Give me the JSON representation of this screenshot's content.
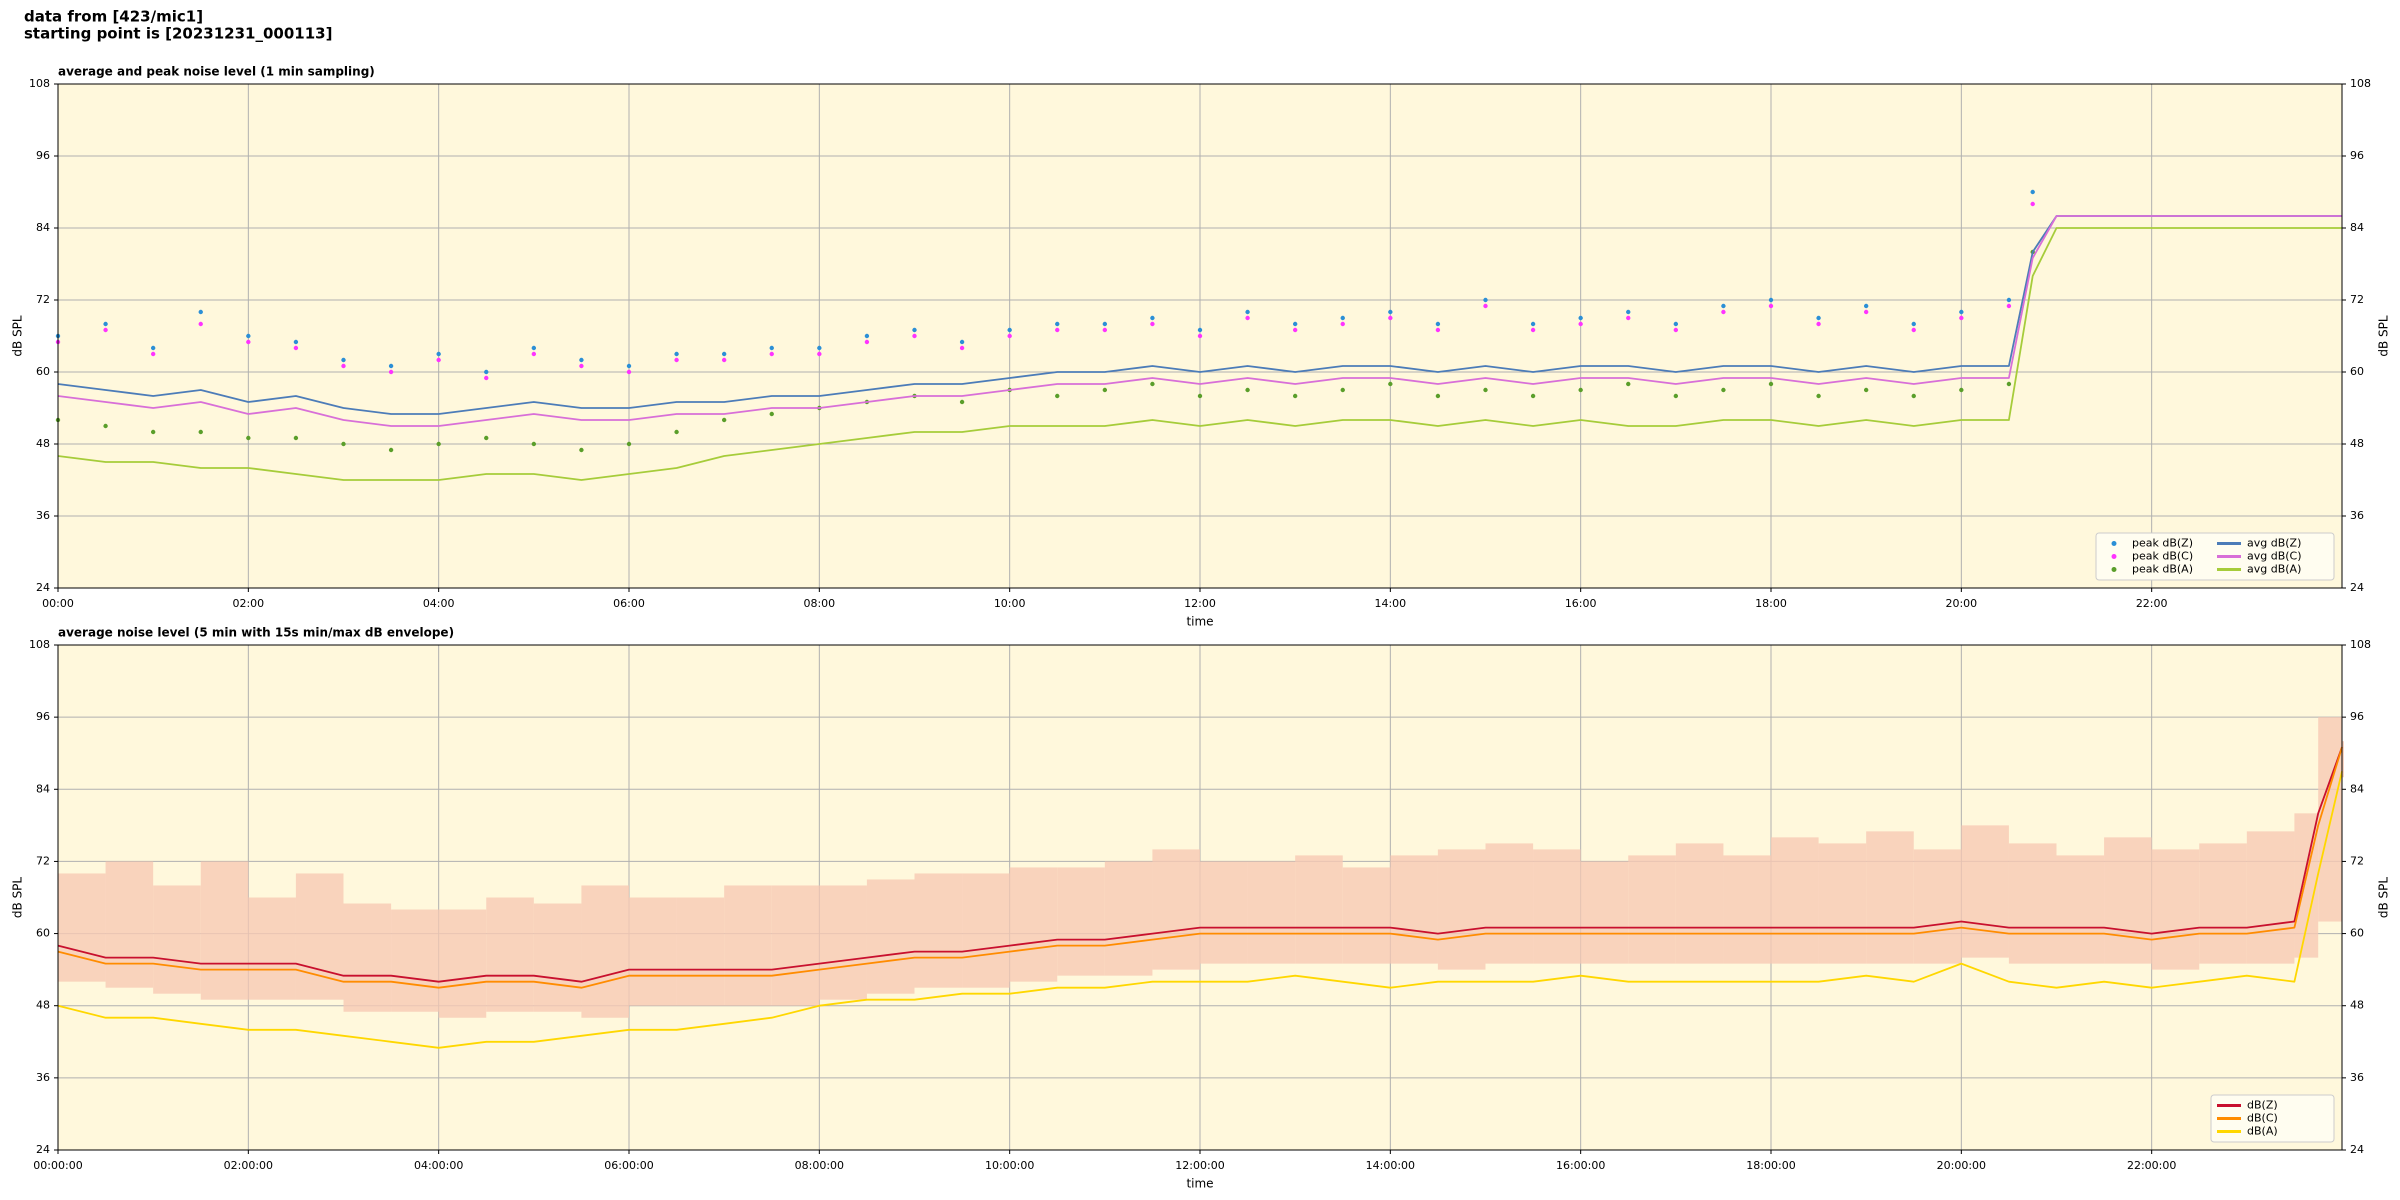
{
  "header": [
    "data from [423/mic1]",
    "starting point is [20231231_000113]"
  ],
  "chart_data": [
    {
      "type": "line",
      "title": "average and peak noise level (1 min sampling)",
      "xlabel": "time",
      "ylabel": "dB SPL",
      "background": "#fff8dc",
      "grid": true,
      "legend": "lower right",
      "legend_columns": 2,
      "xlim": [
        0,
        24
      ],
      "ylim": [
        24,
        108
      ],
      "xticks": [
        {
          "value": 0,
          "label": "00:00"
        },
        {
          "value": 2,
          "label": "02:00"
        },
        {
          "value": 4,
          "label": "04:00"
        },
        {
          "value": 6,
          "label": "06:00"
        },
        {
          "value": 8,
          "label": "08:00"
        },
        {
          "value": 10,
          "label": "10:00"
        },
        {
          "value": 12,
          "label": "12:00"
        },
        {
          "value": 14,
          "label": "14:00"
        },
        {
          "value": 16,
          "label": "16:00"
        },
        {
          "value": 18,
          "label": "18:00"
        },
        {
          "value": 20,
          "label": "20:00"
        },
        {
          "value": 22,
          "label": "22:00"
        }
      ],
      "yticks": [
        24,
        36,
        48,
        60,
        72,
        84,
        96,
        108
      ],
      "x": [
        0,
        0.5,
        1,
        1.5,
        2,
        2.5,
        3,
        3.5,
        4,
        4.5,
        5,
        5.5,
        6,
        6.5,
        7,
        7.5,
        8,
        8.5,
        9,
        9.5,
        10,
        10.5,
        11,
        11.5,
        12,
        12.5,
        13,
        13.5,
        14,
        14.5,
        15,
        15.5,
        16,
        16.5,
        17,
        17.5,
        18,
        18.5,
        19,
        19.5,
        20,
        20.5,
        20.75,
        21,
        22,
        23,
        24
      ],
      "series": [
        {
          "name": "peak dB(Z)",
          "mark": "dot",
          "color": "#2b8fd6",
          "values": [
            66,
            68,
            64,
            70,
            66,
            65,
            62,
            61,
            63,
            60,
            64,
            62,
            61,
            63,
            63,
            64,
            64,
            66,
            67,
            65,
            67,
            68,
            68,
            69,
            67,
            70,
            68,
            69,
            70,
            68,
            72,
            68,
            69,
            70,
            68,
            71,
            72,
            69,
            71,
            68,
            70,
            72,
            90,
            null,
            null,
            null,
            null
          ]
        },
        {
          "name": "peak dB(C)",
          "mark": "dot",
          "color": "#ff33ff",
          "values": [
            65,
            67,
            63,
            68,
            65,
            64,
            61,
            60,
            62,
            59,
            63,
            61,
            60,
            62,
            62,
            63,
            63,
            65,
            66,
            64,
            66,
            67,
            67,
            68,
            66,
            69,
            67,
            68,
            69,
            67,
            71,
            67,
            68,
            69,
            67,
            70,
            71,
            68,
            70,
            67,
            69,
            71,
            88,
            null,
            null,
            null,
            null
          ]
        },
        {
          "name": "peak dB(A)",
          "mark": "dot",
          "color": "#5a9e2a",
          "values": [
            52,
            51,
            50,
            50,
            49,
            49,
            48,
            47,
            48,
            49,
            48,
            47,
            48,
            50,
            52,
            53,
            54,
            55,
            56,
            55,
            57,
            56,
            57,
            58,
            56,
            57,
            56,
            57,
            58,
            56,
            57,
            56,
            57,
            58,
            56,
            57,
            58,
            56,
            57,
            56,
            57,
            58,
            80,
            null,
            null,
            null,
            null
          ]
        },
        {
          "name": "avg dB(Z)",
          "mark": "line",
          "color": "#4c7cb8",
          "values": [
            58,
            57,
            56,
            57,
            55,
            56,
            54,
            53,
            53,
            54,
            55,
            54,
            54,
            55,
            55,
            56,
            56,
            57,
            58,
            58,
            59,
            60,
            60,
            61,
            60,
            61,
            60,
            61,
            61,
            60,
            61,
            60,
            61,
            61,
            60,
            61,
            61,
            60,
            61,
            60,
            61,
            61,
            80,
            86,
            86,
            86,
            86
          ]
        },
        {
          "name": "avg dB(C)",
          "mark": "line",
          "color": "#d86fd8",
          "values": [
            56,
            55,
            54,
            55,
            53,
            54,
            52,
            51,
            51,
            52,
            53,
            52,
            52,
            53,
            53,
            54,
            54,
            55,
            56,
            56,
            57,
            58,
            58,
            59,
            58,
            59,
            58,
            59,
            59,
            58,
            59,
            58,
            59,
            59,
            58,
            59,
            59,
            58,
            59,
            58,
            59,
            59,
            79,
            86,
            86,
            86,
            86
          ]
        },
        {
          "name": "avg dB(A)",
          "mark": "line",
          "color": "#a6cc3a",
          "values": [
            46,
            45,
            45,
            44,
            44,
            43,
            42,
            42,
            42,
            43,
            43,
            42,
            43,
            44,
            46,
            47,
            48,
            49,
            50,
            50,
            51,
            51,
            51,
            52,
            51,
            52,
            51,
            52,
            52,
            51,
            52,
            51,
            52,
            51,
            51,
            52,
            52,
            51,
            52,
            51,
            52,
            52,
            76,
            84,
            84,
            84,
            84
          ]
        }
      ]
    },
    {
      "type": "line",
      "title": "average noise level (5 min with 15s min/max dB envelope)",
      "xlabel": "time",
      "ylabel": "dB SPL",
      "background": "#fff8dc",
      "grid": true,
      "legend": "lower right",
      "legend_columns": 1,
      "xlim": [
        0,
        24
      ],
      "ylim": [
        24,
        108
      ],
      "xticks": [
        {
          "value": 0,
          "label": "00:00:00"
        },
        {
          "value": 2,
          "label": "02:00:00"
        },
        {
          "value": 4,
          "label": "04:00:00"
        },
        {
          "value": 6,
          "label": "06:00:00"
        },
        {
          "value": 8,
          "label": "08:00:00"
        },
        {
          "value": 10,
          "label": "10:00:00"
        },
        {
          "value": 12,
          "label": "12:00:00"
        },
        {
          "value": 14,
          "label": "14:00:00"
        },
        {
          "value": 16,
          "label": "16:00:00"
        },
        {
          "value": 18,
          "label": "18:00:00"
        },
        {
          "value": 20,
          "label": "20:00:00"
        },
        {
          "value": 22,
          "label": "22:00:00"
        }
      ],
      "yticks": [
        24,
        36,
        48,
        60,
        72,
        84,
        96,
        108
      ],
      "x": [
        0,
        0.5,
        1,
        1.5,
        2,
        2.5,
        3,
        3.5,
        4,
        4.5,
        5,
        5.5,
        6,
        6.5,
        7,
        7.5,
        8,
        8.5,
        9,
        9.5,
        10,
        10.5,
        11,
        11.5,
        12,
        12.5,
        13,
        13.5,
        14,
        14.5,
        15,
        15.5,
        16,
        16.5,
        17,
        17.5,
        18,
        18.5,
        19,
        19.5,
        20,
        20.5,
        21,
        21.5,
        22,
        22.5,
        23,
        23.5,
        23.75,
        24
      ],
      "envelope": {
        "color": "#f7c9b4",
        "low": [
          52,
          51,
          50,
          49,
          49,
          49,
          47,
          47,
          46,
          47,
          47,
          46,
          48,
          48,
          48,
          48,
          49,
          50,
          51,
          51,
          52,
          53,
          53,
          54,
          55,
          55,
          55,
          55,
          55,
          54,
          55,
          55,
          55,
          55,
          55,
          55,
          55,
          55,
          55,
          55,
          56,
          55,
          55,
          55,
          54,
          55,
          55,
          56,
          62,
          86
        ],
        "high": [
          70,
          72,
          68,
          72,
          66,
          70,
          65,
          64,
          64,
          66,
          65,
          68,
          66,
          66,
          68,
          68,
          68,
          69,
          70,
          70,
          71,
          71,
          72,
          74,
          72,
          72,
          73,
          71,
          73,
          74,
          75,
          74,
          72,
          73,
          75,
          73,
          76,
          75,
          77,
          74,
          78,
          75,
          73,
          76,
          74,
          75,
          77,
          80,
          96,
          92
        ]
      },
      "series": [
        {
          "name": "dB(Z)",
          "mark": "line",
          "color": "#c8102e",
          "values": [
            58,
            56,
            56,
            55,
            55,
            55,
            53,
            53,
            52,
            53,
            53,
            52,
            54,
            54,
            54,
            54,
            55,
            56,
            57,
            57,
            58,
            59,
            59,
            60,
            61,
            61,
            61,
            61,
            61,
            60,
            61,
            61,
            61,
            61,
            61,
            61,
            61,
            61,
            61,
            61,
            62,
            61,
            61,
            61,
            60,
            61,
            61,
            62,
            80,
            91
          ]
        },
        {
          "name": "dB(C)",
          "mark": "line",
          "color": "#ff8c00",
          "values": [
            57,
            55,
            55,
            54,
            54,
            54,
            52,
            52,
            51,
            52,
            52,
            51,
            53,
            53,
            53,
            53,
            54,
            55,
            56,
            56,
            57,
            58,
            58,
            59,
            60,
            60,
            60,
            60,
            60,
            59,
            60,
            60,
            60,
            60,
            60,
            60,
            60,
            60,
            60,
            60,
            61,
            60,
            60,
            60,
            59,
            60,
            60,
            61,
            78,
            91
          ]
        },
        {
          "name": "dB(A)",
          "mark": "line",
          "color": "#ffd700",
          "values": [
            48,
            46,
            46,
            45,
            44,
            44,
            43,
            42,
            41,
            42,
            42,
            43,
            44,
            44,
            45,
            46,
            48,
            49,
            49,
            50,
            50,
            51,
            51,
            52,
            52,
            52,
            53,
            52,
            51,
            52,
            52,
            52,
            53,
            52,
            52,
            52,
            52,
            52,
            53,
            52,
            55,
            52,
            51,
            52,
            51,
            52,
            53,
            52,
            70,
            87
          ]
        }
      ]
    }
  ]
}
